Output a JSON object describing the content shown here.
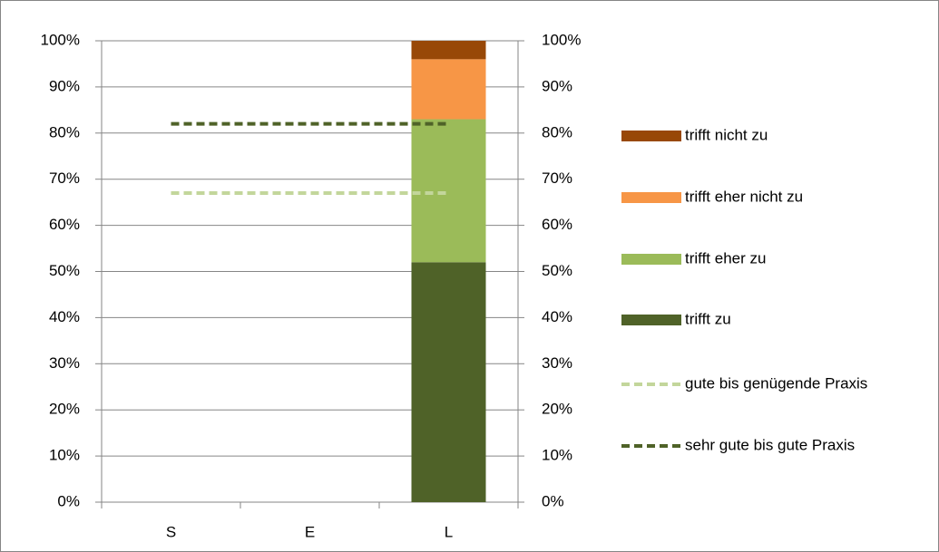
{
  "chart_data": {
    "type": "bar",
    "stacked": true,
    "categories": [
      "S",
      "E",
      "L"
    ],
    "series": [
      {
        "name": "trifft zu",
        "type": "bar",
        "color": "#4f6228",
        "values": [
          null,
          null,
          52
        ]
      },
      {
        "name": "trifft eher zu",
        "type": "bar",
        "color": "#9bbb59",
        "values": [
          null,
          null,
          31
        ]
      },
      {
        "name": "trifft eher nicht zu",
        "type": "bar",
        "color": "#f79646",
        "values": [
          null,
          null,
          13
        ]
      },
      {
        "name": "trifft nicht zu",
        "type": "bar",
        "color": "#984807",
        "values": [
          null,
          null,
          4
        ]
      },
      {
        "name": "gute bis genügende Praxis",
        "type": "line",
        "dashed": true,
        "color": "#c3d69b",
        "values": [
          67,
          67,
          67
        ]
      },
      {
        "name": "sehr gute bis gute Praxis",
        "type": "line",
        "dashed": true,
        "color": "#4f6228",
        "values": [
          82,
          82,
          82
        ]
      }
    ],
    "ylim": [
      0,
      100
    ],
    "yticks": [
      {
        "value": 0,
        "label": "0%"
      },
      {
        "value": 10,
        "label": "10%"
      },
      {
        "value": 20,
        "label": "20%"
      },
      {
        "value": 30,
        "label": "30%"
      },
      {
        "value": 40,
        "label": "40%"
      },
      {
        "value": 50,
        "label": "50%"
      },
      {
        "value": 60,
        "label": "60%"
      },
      {
        "value": 70,
        "label": "70%"
      },
      {
        "value": 80,
        "label": "80%"
      },
      {
        "value": 90,
        "label": "90%"
      },
      {
        "value": 100,
        "label": "100%"
      }
    ],
    "y2lim": [
      0,
      100
    ],
    "y2ticks": [
      {
        "value": 0,
        "label": "0%"
      },
      {
        "value": 10,
        "label": "10%"
      },
      {
        "value": 20,
        "label": "20%"
      },
      {
        "value": 30,
        "label": "30%"
      },
      {
        "value": 40,
        "label": "40%"
      },
      {
        "value": 50,
        "label": "50%"
      },
      {
        "value": 60,
        "label": "60%"
      },
      {
        "value": 70,
        "label": "70%"
      },
      {
        "value": 80,
        "label": "80%"
      },
      {
        "value": 90,
        "label": "90%"
      },
      {
        "value": 100,
        "label": "100%"
      }
    ],
    "grid": true,
    "legend_position": "right"
  }
}
